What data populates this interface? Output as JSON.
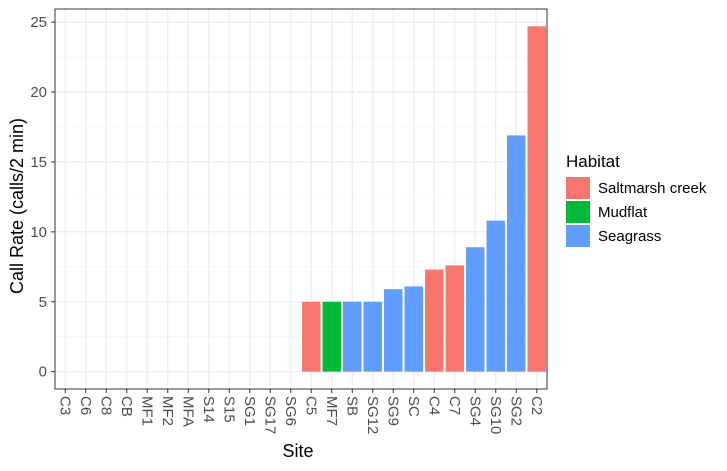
{
  "chart_data": {
    "type": "bar",
    "categories": [
      "C3",
      "C6",
      "C8",
      "CB",
      "MF1",
      "MF2",
      "MFA",
      "S14",
      "S15",
      "SG1",
      "SG17",
      "SG6",
      "C5",
      "MF7",
      "SB",
      "SG12",
      "SG9",
      "SC",
      "C4",
      "C7",
      "SG4",
      "SG10",
      "SG2",
      "C2"
    ],
    "values": [
      0,
      0,
      0,
      0,
      0,
      0,
      0,
      0,
      0,
      0,
      0,
      0,
      5,
      5,
      5,
      5,
      5.9,
      6.1,
      7.3,
      7.6,
      8.9,
      10.8,
      16.9,
      24.7
    ],
    "habitats": [
      "",
      "",
      "",
      "",
      "",
      "",
      "",
      "",
      "",
      "",
      "",
      "",
      "Saltmarsh creek",
      "Mudflat",
      "Seagrass",
      "Seagrass",
      "Seagrass",
      "Seagrass",
      "Saltmarsh creek",
      "Saltmarsh creek",
      "Seagrass",
      "Seagrass",
      "Seagrass",
      "Saltmarsh creek"
    ],
    "title": "",
    "xlabel": "Site",
    "ylabel": "Call Rate (calls/2 min)",
    "ylim": [
      -1.24,
      25.94
    ],
    "yticks": [
      0,
      5,
      10,
      15,
      20,
      25
    ],
    "grid": true,
    "legend": {
      "title": "Habitat",
      "position": "right",
      "entries": [
        {
          "label": "Saltmarsh creek",
          "color": "#F8766D"
        },
        {
          "label": "Mudflat",
          "color": "#00BA38"
        },
        {
          "label": "Seagrass",
          "color": "#619CFF"
        }
      ]
    }
  }
}
